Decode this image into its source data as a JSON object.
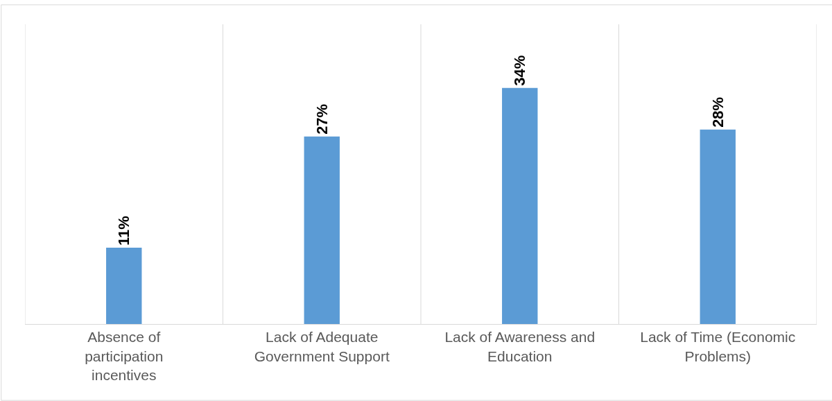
{
  "chart_data": {
    "type": "bar",
    "categories": [
      "Absence of participation incentives",
      "Lack of Adequate Government Support",
      "Lack of Awareness and Education",
      "Lack of Time (Economic Problems)"
    ],
    "values": [
      11,
      27,
      34,
      28
    ],
    "value_labels": [
      "11%",
      "27%",
      "34%",
      "28%"
    ],
    "color": "#5b9bd5",
    "grid": "x",
    "legend": false
  }
}
